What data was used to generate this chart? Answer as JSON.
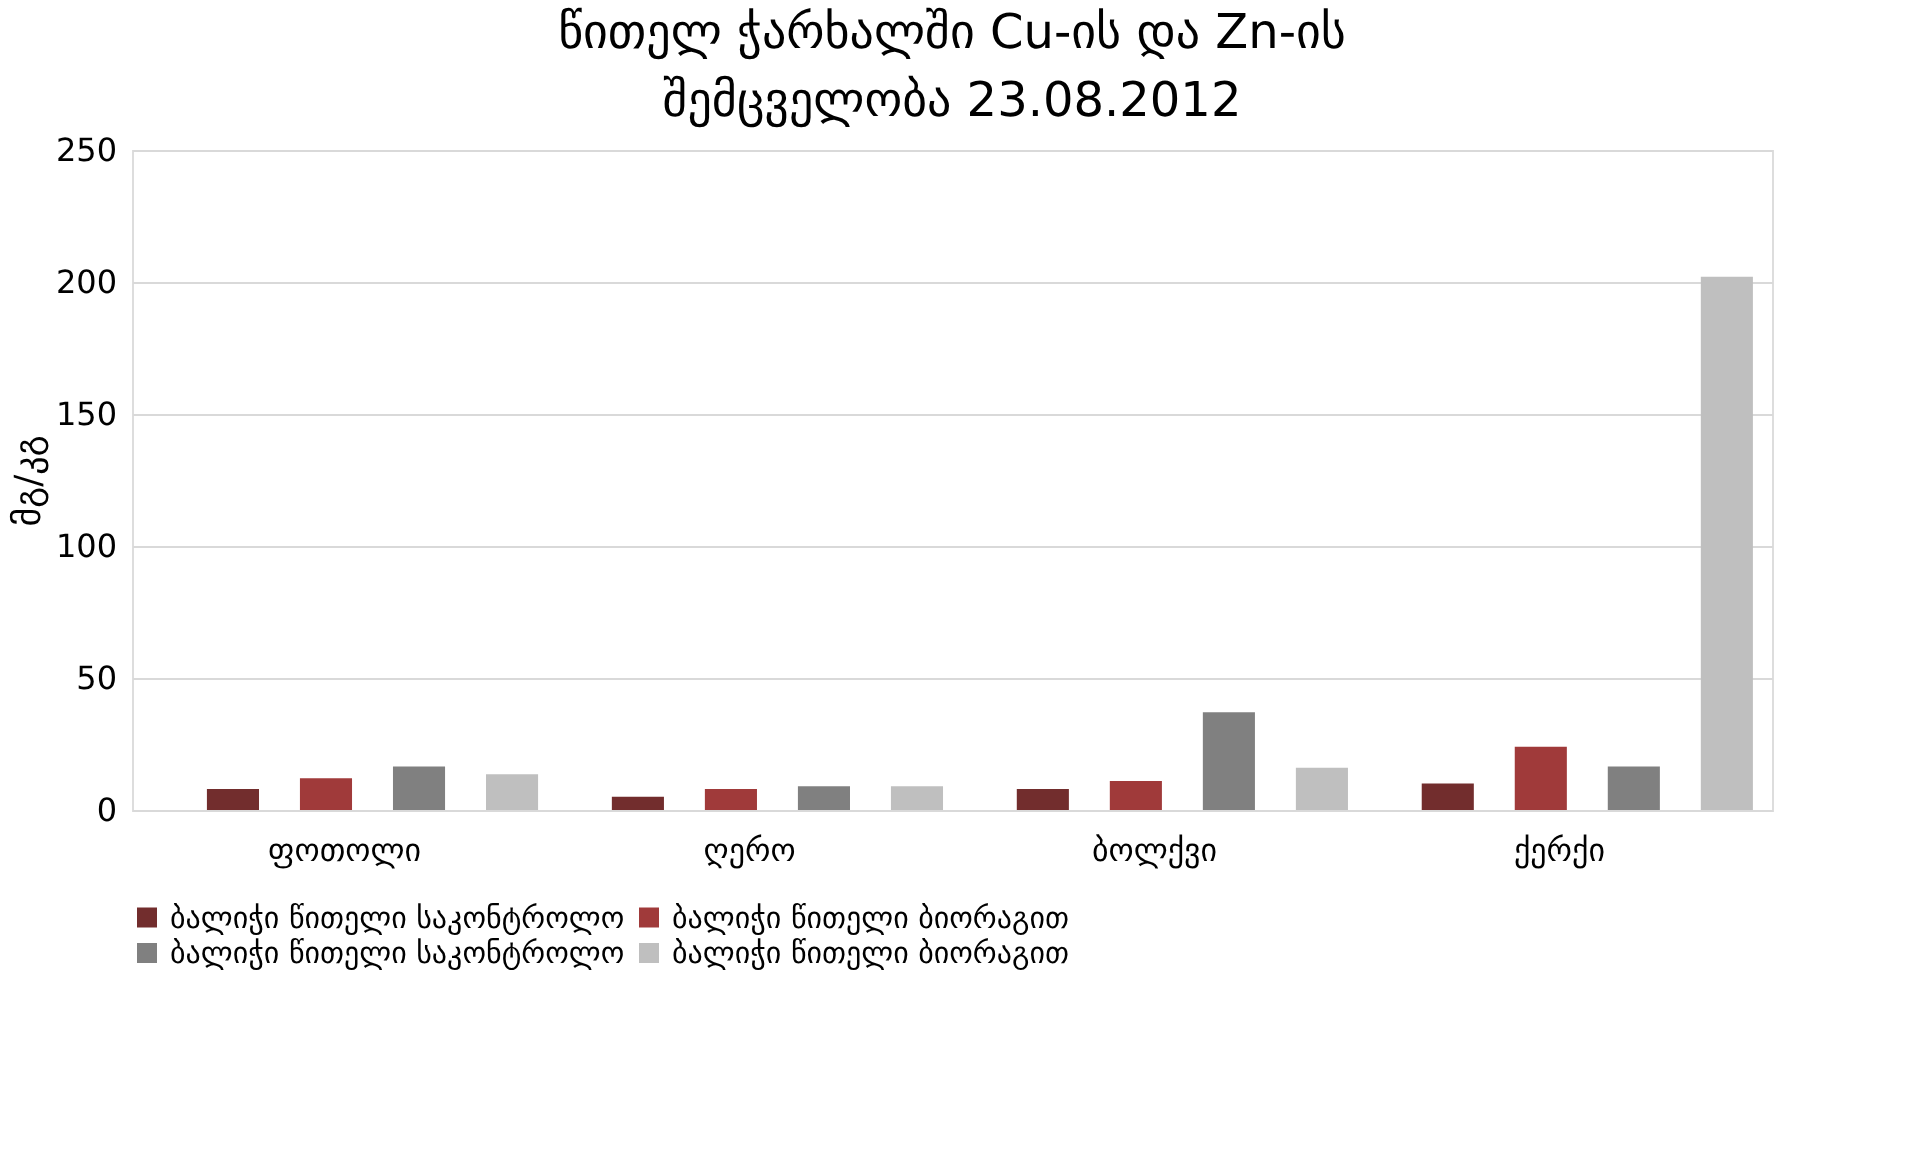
{
  "chart_data": {
    "type": "bar",
    "title": "წითელ ჭარხალში Cu-ის და Zn-ის\nშემცველობა 23.08.2012",
    "ylabel": "მგ/კგ",
    "categories": [
      "ფოთოლი",
      "ღერო",
      "ბოლქვი",
      "ქერქი"
    ],
    "series": [
      {
        "name": "ბალიჭი წითელი საკონტროლო",
        "color": "#722d2d",
        "values": [
          8,
          5,
          8,
          10
        ]
      },
      {
        "name": "ბალიჭი წითელი ბიორაგით",
        "color": "#a03a3a",
        "values": [
          12,
          8,
          11,
          24
        ]
      },
      {
        "name": "ბალიჭი წითელი საკონტროლო",
        "color": "#808080",
        "values": [
          16.5,
          9,
          37,
          16.5
        ]
      },
      {
        "name": "ბალიჭი წითელი ბიორაგით",
        "color": "#bfbfbf",
        "values": [
          13.5,
          9,
          16,
          202
        ]
      }
    ],
    "ylim": [
      0,
      250
    ],
    "yticks": [
      0,
      50,
      100,
      150,
      200,
      250
    ],
    "grid": "y",
    "legend": "bottom"
  }
}
